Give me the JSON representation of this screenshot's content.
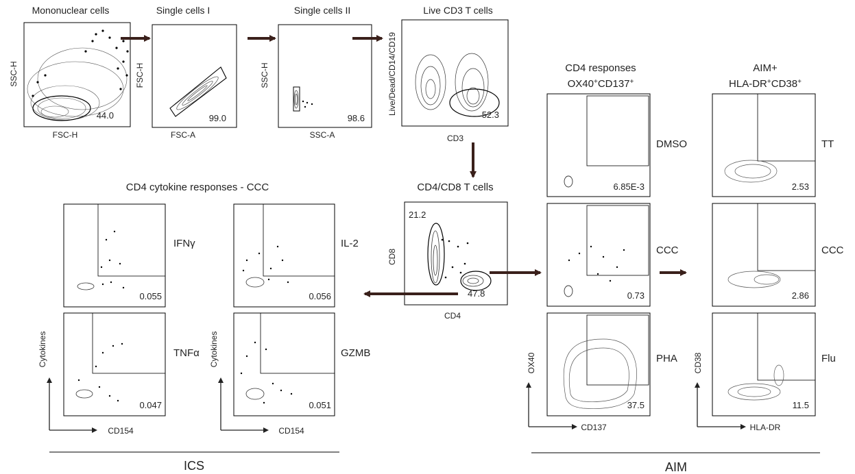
{
  "colors": {
    "ink": "#222222",
    "arrow": "#3a201b",
    "panel_border": "#000000"
  },
  "top_row": [
    {
      "title": "Mononuclear cells",
      "ylabel": "SSC-H",
      "xlabel": "FSC-H",
      "value": "44.0"
    },
    {
      "title": "Single cells I",
      "ylabel": "FSC-H",
      "xlabel": "FSC-A",
      "value": "99.0"
    },
    {
      "title": "Single cells II",
      "ylabel": "SSC-H",
      "xlabel": "SSC-A",
      "value": "98.6"
    },
    {
      "title": "Live CD3 T cells",
      "ylabel": "Live/Dead/CD14/CD19",
      "xlabel": "CD3",
      "value": "52.3"
    }
  ],
  "cd4cd8": {
    "title": "CD4/CD8 T cells",
    "ylabel": "CD8",
    "xlabel": "CD4",
    "value_cd8": "21.2",
    "value_cd4": "47.8"
  },
  "ics": {
    "title": "CD4 cytokine responses - CCC",
    "panels": [
      {
        "label": "IFNγ",
        "value": "0.055"
      },
      {
        "label": "IL-2",
        "value": "0.056"
      },
      {
        "label": "TNFα",
        "value": "0.047"
      },
      {
        "label": "GZMB",
        "value": "0.051"
      }
    ],
    "ylabel": "Cytokines",
    "xlabel": "CD154",
    "section_label": "ICS"
  },
  "aim": {
    "title_left_line1": "CD4 responses",
    "title_left_line2": "OX40",
    "title_left_sup2": "+",
    "title_left_line2b": "CD137",
    "title_left_sup2b": "+",
    "title_right_line1": "AIM+",
    "title_right_line2": "HLA-DR",
    "title_right_sup2": "+",
    "title_right_line2b": "CD38",
    "title_right_sup2b": "+",
    "left_panels": [
      {
        "label": "DMSO",
        "value": "6.85E-3"
      },
      {
        "label": "CCC",
        "value": "0.73"
      },
      {
        "label": "PHA",
        "value": "37.5"
      }
    ],
    "right_panels": [
      {
        "label": "TT",
        "value": "2.53"
      },
      {
        "label": "CCC",
        "value": "2.86"
      },
      {
        "label": "Flu",
        "value": "11.5"
      }
    ],
    "left_ylabel": "OX40",
    "left_xlabel": "CD137",
    "right_ylabel": "CD38",
    "right_xlabel": "HLA-DR",
    "section_label": "AIM"
  }
}
